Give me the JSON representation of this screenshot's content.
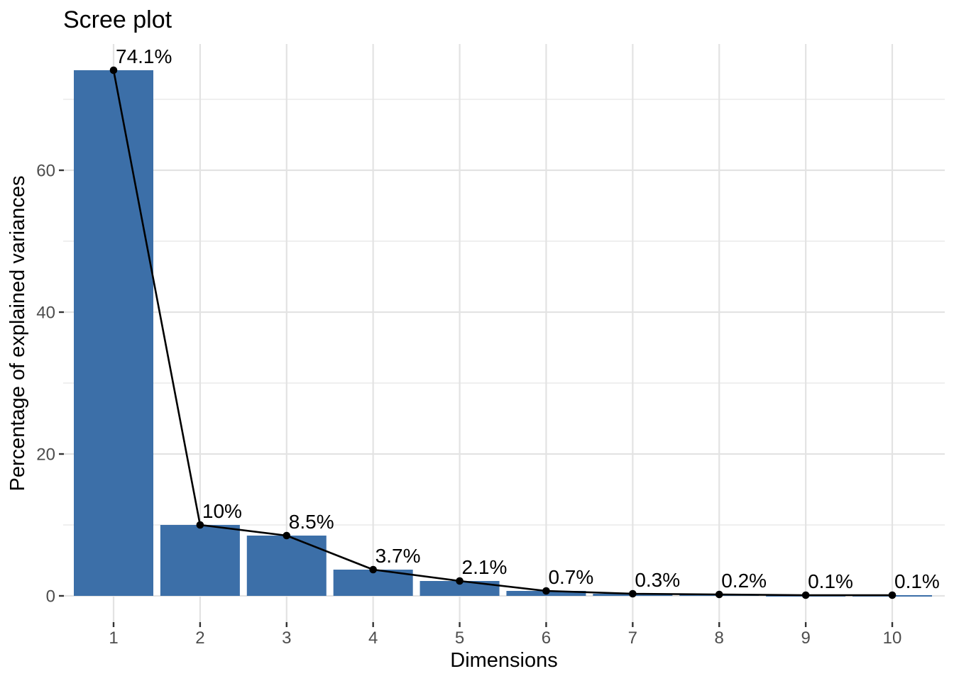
{
  "title": "Scree plot",
  "chart_data": {
    "type": "bar",
    "subtype": "scree plot (bars with overlaid line and point labels)",
    "title": "Scree plot",
    "xlabel": "Dimensions",
    "ylabel": "Percentage of explained variances",
    "categories": [
      "1",
      "2",
      "3",
      "4",
      "5",
      "6",
      "7",
      "8",
      "9",
      "10"
    ],
    "values": [
      74.1,
      10,
      8.5,
      3.7,
      2.1,
      0.7,
      0.3,
      0.2,
      0.1,
      0.1
    ],
    "point_labels": [
      "74.1%",
      "10%",
      "8.5%",
      "3.7%",
      "2.1%",
      "0.7%",
      "0.3%",
      "0.2%",
      "0.1%",
      "0.1%"
    ],
    "ylim": [
      0,
      77.8
    ],
    "yticks": [
      0,
      20,
      40,
      60
    ],
    "yticks_minor": [
      10,
      30,
      50,
      70
    ],
    "grid": "horizontal every 10, vertical at each dimension",
    "legend": "none",
    "colors": {
      "bar_fill": "#3C6FA8",
      "line": "#000000",
      "point": "#000000",
      "data_label": "#000000",
      "tick_label": "#4D4D4D",
      "tick_mark": "#333333",
      "grid_major": "#E3E3E3",
      "grid_minor": "#EDEDED",
      "background": "#FFFFFF"
    }
  }
}
